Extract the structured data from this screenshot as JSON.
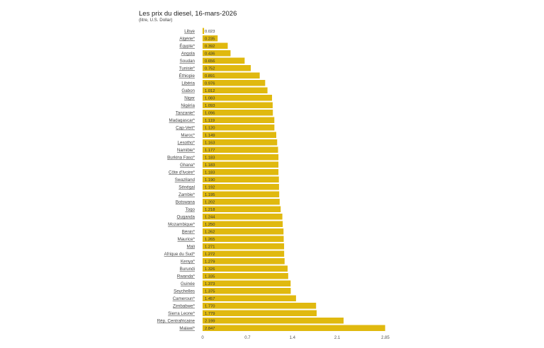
{
  "chart_data": {
    "type": "bar",
    "orientation": "horizontal",
    "title": "Les prix du diesel, 16-mars-2026",
    "subtitle": "(litre, U.S. Dollar)",
    "xlabel": "",
    "ylabel": "",
    "xlim": [
      0,
      2.85
    ],
    "xticks": [
      "0",
      "0.7",
      "1.4",
      "2.1",
      "2.85"
    ],
    "xtick_values": [
      0,
      0.7,
      1.4,
      2.1,
      2.85
    ],
    "bar_color": "#e0b90f",
    "categories": [
      "Libye",
      "Algérie*",
      "Égypte*",
      "Angola",
      "Soudan",
      "Tunisie*",
      "Éthiopie",
      "Libéria",
      "Gabon",
      "Niger",
      "Nigéria",
      "Tanzanie*",
      "Madagascar*",
      "Cap-Vert*",
      "Maroc*",
      "Lesotho*",
      "Namibie*",
      "Burkina Faso*",
      "Ghana*",
      "Côte d'Ivoire*",
      "Swaziland",
      "Sénégal",
      "Zambie*",
      "Botswana",
      "Togo",
      "Ouganda",
      "Mozambique*",
      "Bénin*",
      "Maurice*",
      "Mali",
      "Afrique du Sud*",
      "Kenya*",
      "Burundi",
      "Rwanda*",
      "Guinée",
      "Seychelles",
      "Cameroun*",
      "Zimbabwe*",
      "Sierra Leone*",
      "Rép. Centrafricaine",
      "Malawi*"
    ],
    "values": [
      0.023,
      0.235,
      0.392,
      0.436,
      0.656,
      0.752,
      0.891,
      0.976,
      1.012,
      1.083,
      1.093,
      1.096,
      1.119,
      1.12,
      1.149,
      1.163,
      1.177,
      1.183,
      1.183,
      1.183,
      1.19,
      1.192,
      1.195,
      1.202,
      1.218,
      1.244,
      1.25,
      1.262,
      1.265,
      1.271,
      1.272,
      1.279,
      1.326,
      1.335,
      1.373,
      1.375,
      1.457,
      1.77,
      1.779,
      2.199,
      2.847
    ],
    "value_labels": [
      "0.023",
      "0.235",
      "0.392",
      "0.436",
      "0.656",
      "0.752",
      "0.891",
      "0.976",
      "1.012",
      "1.083",
      "1.093",
      "1.096",
      "1.119",
      "1.120",
      "1.149",
      "1.163",
      "1.177",
      "1.183",
      "1.183",
      "1.183",
      "1.190",
      "1.192",
      "1.195",
      "1.202",
      "1.218",
      "1.244",
      "1.250",
      "1.262",
      "1.265",
      "1.271",
      "1.272",
      "1.279",
      "1.326",
      "1.335",
      "1.373",
      "1.375",
      "1.457",
      "1.770",
      "1.779",
      "2.199",
      "2.847"
    ],
    "grid": false,
    "legend": "none"
  }
}
